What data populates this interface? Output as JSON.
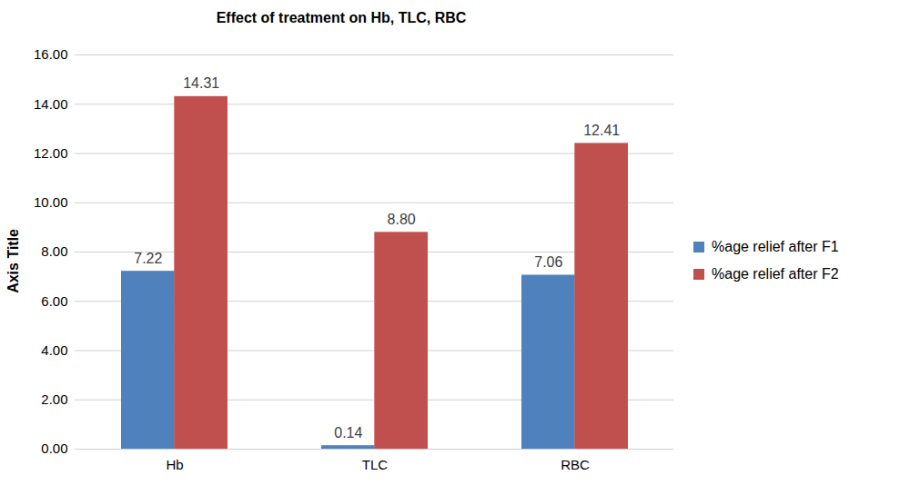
{
  "chart_data": {
    "type": "bar",
    "title": "Effect of treatment on Hb, TLC, RBC",
    "y_label": "Axis Title",
    "categories": [
      "Hb",
      "TLC",
      "RBC"
    ],
    "series": [
      {
        "name": "%age relief after F1",
        "color": "#4f81bd",
        "values": [
          7.22,
          0.14,
          7.06
        ],
        "value_labels": [
          "7.22",
          "0.14",
          "7.06"
        ]
      },
      {
        "name": "%age relief after F2",
        "color": "#c0504d",
        "values": [
          14.31,
          8.8,
          12.41
        ],
        "value_labels": [
          "14.31",
          "8.80",
          "12.41"
        ]
      }
    ],
    "ylim": [
      0,
      16
    ],
    "yticks": [
      {
        "value": 0,
        "label": "0.00"
      },
      {
        "value": 2,
        "label": "2.00"
      },
      {
        "value": 4,
        "label": "4.00"
      },
      {
        "value": 6,
        "label": "6.00"
      },
      {
        "value": 8,
        "label": "8.00"
      },
      {
        "value": 10,
        "label": "10.00"
      },
      {
        "value": 12,
        "label": "12.00"
      },
      {
        "value": 14,
        "label": "14.00"
      },
      {
        "value": 16,
        "label": "16.00"
      }
    ],
    "grid": true,
    "legend": "right",
    "data_labels": true
  }
}
